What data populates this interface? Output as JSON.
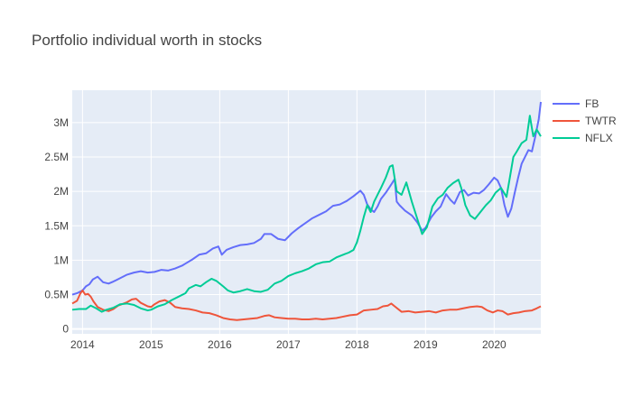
{
  "chart_data": {
    "type": "line",
    "title": "Portfolio individual worth in stocks",
    "xlabel": "",
    "ylabel": "",
    "xlim": [
      2013.85,
      2020.68
    ],
    "ylim": [
      -70000,
      3470000
    ],
    "x_ticks": [
      {
        "value": 2014,
        "label": "2014"
      },
      {
        "value": 2015,
        "label": "2015"
      },
      {
        "value": 2016,
        "label": "2016"
      },
      {
        "value": 2017,
        "label": "2017"
      },
      {
        "value": 2018,
        "label": "2018"
      },
      {
        "value": 2019,
        "label": "2019"
      },
      {
        "value": 2020,
        "label": "2020"
      }
    ],
    "y_ticks": [
      {
        "value": 0,
        "label": "0"
      },
      {
        "value": 500000,
        "label": "0.5M"
      },
      {
        "value": 1000000,
        "label": "1M"
      },
      {
        "value": 1500000,
        "label": "1.5M"
      },
      {
        "value": 2000000,
        "label": "2M"
      },
      {
        "value": 2500000,
        "label": "2.5M"
      },
      {
        "value": 3000000,
        "label": "3M"
      }
    ],
    "grid": true,
    "legend_position": "top-right",
    "plot_background": "#e5ecf6",
    "series": [
      {
        "name": "FB",
        "color": "#636efa",
        "points": [
          [
            2013.85,
            500000
          ],
          [
            2013.92,
            520000
          ],
          [
            2014.0,
            560000
          ],
          [
            2014.05,
            620000
          ],
          [
            2014.1,
            650000
          ],
          [
            2014.15,
            720000
          ],
          [
            2014.22,
            760000
          ],
          [
            2014.3,
            680000
          ],
          [
            2014.38,
            660000
          ],
          [
            2014.45,
            690000
          ],
          [
            2014.55,
            740000
          ],
          [
            2014.65,
            790000
          ],
          [
            2014.75,
            820000
          ],
          [
            2014.85,
            840000
          ],
          [
            2014.95,
            820000
          ],
          [
            2015.05,
            830000
          ],
          [
            2015.15,
            860000
          ],
          [
            2015.25,
            850000
          ],
          [
            2015.35,
            880000
          ],
          [
            2015.45,
            920000
          ],
          [
            2015.5,
            950000
          ],
          [
            2015.6,
            1010000
          ],
          [
            2015.7,
            1080000
          ],
          [
            2015.8,
            1100000
          ],
          [
            2015.9,
            1170000
          ],
          [
            2015.98,
            1200000
          ],
          [
            2016.03,
            1080000
          ],
          [
            2016.1,
            1150000
          ],
          [
            2016.2,
            1190000
          ],
          [
            2016.3,
            1220000
          ],
          [
            2016.4,
            1230000
          ],
          [
            2016.5,
            1250000
          ],
          [
            2016.6,
            1310000
          ],
          [
            2016.65,
            1380000
          ],
          [
            2016.75,
            1380000
          ],
          [
            2016.85,
            1310000
          ],
          [
            2016.95,
            1290000
          ],
          [
            2017.05,
            1390000
          ],
          [
            2017.15,
            1470000
          ],
          [
            2017.25,
            1540000
          ],
          [
            2017.35,
            1610000
          ],
          [
            2017.45,
            1660000
          ],
          [
            2017.55,
            1710000
          ],
          [
            2017.65,
            1790000
          ],
          [
            2017.75,
            1810000
          ],
          [
            2017.85,
            1860000
          ],
          [
            2017.95,
            1930000
          ],
          [
            2018.05,
            2010000
          ],
          [
            2018.1,
            1950000
          ],
          [
            2018.15,
            1810000
          ],
          [
            2018.2,
            1740000
          ],
          [
            2018.25,
            1700000
          ],
          [
            2018.3,
            1780000
          ],
          [
            2018.35,
            1890000
          ],
          [
            2018.42,
            1980000
          ],
          [
            2018.5,
            2100000
          ],
          [
            2018.55,
            2180000
          ],
          [
            2018.58,
            1850000
          ],
          [
            2018.62,
            1800000
          ],
          [
            2018.7,
            1720000
          ],
          [
            2018.8,
            1650000
          ],
          [
            2018.88,
            1550000
          ],
          [
            2018.95,
            1430000
          ],
          [
            2019.0,
            1470000
          ],
          [
            2019.08,
            1620000
          ],
          [
            2019.15,
            1710000
          ],
          [
            2019.22,
            1780000
          ],
          [
            2019.3,
            1960000
          ],
          [
            2019.36,
            1880000
          ],
          [
            2019.42,
            1820000
          ],
          [
            2019.5,
            1990000
          ],
          [
            2019.56,
            2020000
          ],
          [
            2019.62,
            1940000
          ],
          [
            2019.7,
            1980000
          ],
          [
            2019.78,
            1970000
          ],
          [
            2019.85,
            2020000
          ],
          [
            2019.92,
            2100000
          ],
          [
            2020.0,
            2200000
          ],
          [
            2020.05,
            2160000
          ],
          [
            2020.1,
            2050000
          ],
          [
            2020.15,
            1800000
          ],
          [
            2020.2,
            1630000
          ],
          [
            2020.25,
            1750000
          ],
          [
            2020.3,
            1980000
          ],
          [
            2020.35,
            2200000
          ],
          [
            2020.4,
            2400000
          ],
          [
            2020.45,
            2500000
          ],
          [
            2020.5,
            2600000
          ],
          [
            2020.55,
            2580000
          ],
          [
            2020.6,
            2800000
          ],
          [
            2020.65,
            3050000
          ],
          [
            2020.68,
            3300000
          ]
        ]
      },
      {
        "name": "TWTR",
        "color": "#ef553b",
        "points": [
          [
            2013.85,
            370000
          ],
          [
            2013.92,
            410000
          ],
          [
            2013.97,
            520000
          ],
          [
            2014.0,
            560000
          ],
          [
            2014.04,
            500000
          ],
          [
            2014.08,
            510000
          ],
          [
            2014.12,
            470000
          ],
          [
            2014.16,
            400000
          ],
          [
            2014.22,
            320000
          ],
          [
            2014.3,
            280000
          ],
          [
            2014.38,
            260000
          ],
          [
            2014.45,
            290000
          ],
          [
            2014.52,
            340000
          ],
          [
            2014.6,
            370000
          ],
          [
            2014.65,
            390000
          ],
          [
            2014.72,
            430000
          ],
          [
            2014.78,
            440000
          ],
          [
            2014.85,
            380000
          ],
          [
            2014.95,
            330000
          ],
          [
            2015.0,
            320000
          ],
          [
            2015.05,
            360000
          ],
          [
            2015.12,
            400000
          ],
          [
            2015.2,
            420000
          ],
          [
            2015.28,
            380000
          ],
          [
            2015.35,
            320000
          ],
          [
            2015.45,
            300000
          ],
          [
            2015.55,
            290000
          ],
          [
            2015.65,
            270000
          ],
          [
            2015.75,
            240000
          ],
          [
            2015.85,
            230000
          ],
          [
            2015.95,
            200000
          ],
          [
            2016.05,
            160000
          ],
          [
            2016.15,
            140000
          ],
          [
            2016.25,
            130000
          ],
          [
            2016.35,
            140000
          ],
          [
            2016.45,
            150000
          ],
          [
            2016.55,
            160000
          ],
          [
            2016.65,
            190000
          ],
          [
            2016.72,
            200000
          ],
          [
            2016.8,
            170000
          ],
          [
            2016.9,
            160000
          ],
          [
            2017.0,
            150000
          ],
          [
            2017.1,
            150000
          ],
          [
            2017.2,
            140000
          ],
          [
            2017.3,
            140000
          ],
          [
            2017.4,
            150000
          ],
          [
            2017.5,
            140000
          ],
          [
            2017.6,
            150000
          ],
          [
            2017.7,
            160000
          ],
          [
            2017.8,
            180000
          ],
          [
            2017.9,
            200000
          ],
          [
            2018.0,
            210000
          ],
          [
            2018.05,
            240000
          ],
          [
            2018.1,
            270000
          ],
          [
            2018.2,
            280000
          ],
          [
            2018.3,
            290000
          ],
          [
            2018.38,
            330000
          ],
          [
            2018.45,
            340000
          ],
          [
            2018.5,
            370000
          ],
          [
            2018.55,
            330000
          ],
          [
            2018.65,
            250000
          ],
          [
            2018.75,
            260000
          ],
          [
            2018.85,
            240000
          ],
          [
            2018.95,
            250000
          ],
          [
            2019.05,
            260000
          ],
          [
            2019.15,
            240000
          ],
          [
            2019.25,
            270000
          ],
          [
            2019.35,
            280000
          ],
          [
            2019.45,
            280000
          ],
          [
            2019.55,
            300000
          ],
          [
            2019.65,
            320000
          ],
          [
            2019.75,
            330000
          ],
          [
            2019.82,
            320000
          ],
          [
            2019.9,
            270000
          ],
          [
            2019.98,
            240000
          ],
          [
            2020.05,
            270000
          ],
          [
            2020.12,
            260000
          ],
          [
            2020.2,
            210000
          ],
          [
            2020.28,
            230000
          ],
          [
            2020.36,
            240000
          ],
          [
            2020.45,
            260000
          ],
          [
            2020.55,
            270000
          ],
          [
            2020.62,
            300000
          ],
          [
            2020.68,
            330000
          ]
        ]
      },
      {
        "name": "NFLX",
        "color": "#00cc96",
        "points": [
          [
            2013.85,
            280000
          ],
          [
            2013.95,
            290000
          ],
          [
            2014.05,
            290000
          ],
          [
            2014.12,
            340000
          ],
          [
            2014.2,
            300000
          ],
          [
            2014.28,
            250000
          ],
          [
            2014.35,
            280000
          ],
          [
            2014.45,
            310000
          ],
          [
            2014.55,
            360000
          ],
          [
            2014.65,
            370000
          ],
          [
            2014.75,
            350000
          ],
          [
            2014.85,
            300000
          ],
          [
            2014.95,
            270000
          ],
          [
            2015.0,
            280000
          ],
          [
            2015.1,
            330000
          ],
          [
            2015.2,
            360000
          ],
          [
            2015.3,
            420000
          ],
          [
            2015.4,
            470000
          ],
          [
            2015.5,
            520000
          ],
          [
            2015.55,
            590000
          ],
          [
            2015.65,
            640000
          ],
          [
            2015.72,
            620000
          ],
          [
            2015.8,
            680000
          ],
          [
            2015.88,
            730000
          ],
          [
            2015.95,
            700000
          ],
          [
            2016.05,
            620000
          ],
          [
            2016.12,
            560000
          ],
          [
            2016.2,
            530000
          ],
          [
            2016.3,
            550000
          ],
          [
            2016.4,
            580000
          ],
          [
            2016.5,
            550000
          ],
          [
            2016.6,
            540000
          ],
          [
            2016.7,
            570000
          ],
          [
            2016.8,
            660000
          ],
          [
            2016.9,
            700000
          ],
          [
            2017.0,
            770000
          ],
          [
            2017.1,
            810000
          ],
          [
            2017.2,
            840000
          ],
          [
            2017.3,
            880000
          ],
          [
            2017.4,
            940000
          ],
          [
            2017.5,
            970000
          ],
          [
            2017.6,
            980000
          ],
          [
            2017.7,
            1040000
          ],
          [
            2017.8,
            1080000
          ],
          [
            2017.88,
            1110000
          ],
          [
            2017.95,
            1150000
          ],
          [
            2018.0,
            1260000
          ],
          [
            2018.05,
            1430000
          ],
          [
            2018.1,
            1630000
          ],
          [
            2018.15,
            1800000
          ],
          [
            2018.2,
            1700000
          ],
          [
            2018.25,
            1850000
          ],
          [
            2018.3,
            1950000
          ],
          [
            2018.35,
            2050000
          ],
          [
            2018.42,
            2200000
          ],
          [
            2018.48,
            2360000
          ],
          [
            2018.52,
            2380000
          ],
          [
            2018.58,
            2000000
          ],
          [
            2018.65,
            1950000
          ],
          [
            2018.72,
            2130000
          ],
          [
            2018.8,
            1850000
          ],
          [
            2018.88,
            1600000
          ],
          [
            2018.95,
            1380000
          ],
          [
            2019.02,
            1480000
          ],
          [
            2019.1,
            1780000
          ],
          [
            2019.18,
            1900000
          ],
          [
            2019.25,
            1950000
          ],
          [
            2019.32,
            2050000
          ],
          [
            2019.4,
            2120000
          ],
          [
            2019.48,
            2170000
          ],
          [
            2019.52,
            2050000
          ],
          [
            2019.58,
            1800000
          ],
          [
            2019.65,
            1650000
          ],
          [
            2019.72,
            1600000
          ],
          [
            2019.8,
            1700000
          ],
          [
            2019.88,
            1800000
          ],
          [
            2019.95,
            1870000
          ],
          [
            2020.02,
            1980000
          ],
          [
            2020.1,
            2050000
          ],
          [
            2020.18,
            1920000
          ],
          [
            2020.22,
            2150000
          ],
          [
            2020.28,
            2500000
          ],
          [
            2020.33,
            2580000
          ],
          [
            2020.4,
            2700000
          ],
          [
            2020.47,
            2750000
          ],
          [
            2020.52,
            3100000
          ],
          [
            2020.57,
            2800000
          ],
          [
            2020.62,
            2900000
          ],
          [
            2020.68,
            2800000
          ]
        ]
      }
    ]
  }
}
